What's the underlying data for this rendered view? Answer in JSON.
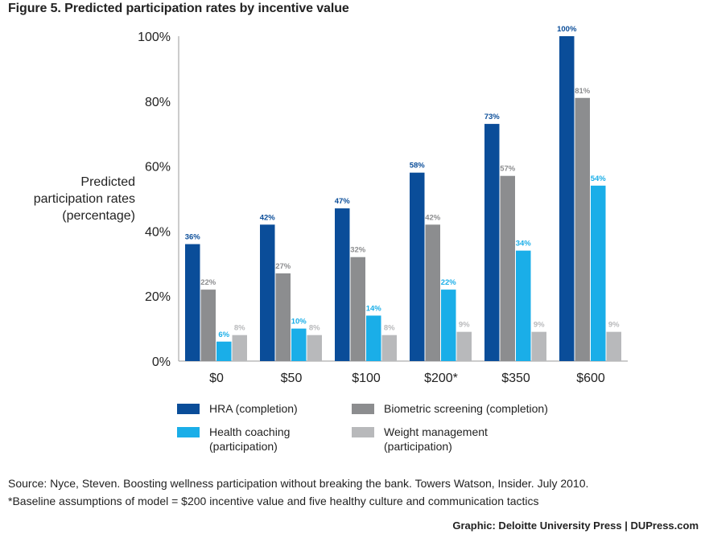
{
  "title": "Figure 5. Predicted participation rates by incentive value",
  "ylabel_lines": [
    "Predicted",
    "participation rates",
    "(percentage)"
  ],
  "source_line": "Source: Nyce, Steven. Boosting wellness participation without breaking the bank. Towers Watson, Insider. July 2010.",
  "footnote_line": "*Baseline assumptions of model = $200 incentive value and five healthy culture and communication tactics",
  "credit": "Graphic: Deloitte University Press  |  DUPress.com",
  "legend": [
    {
      "label": "HRA (completion)",
      "color": "#0a4d99"
    },
    {
      "label": "Biometric screening (completion)",
      "color": "#8c8d8f"
    },
    {
      "label": "Health coaching\n(participation)",
      "color": "#1aaee8"
    },
    {
      "label": "Weight management\n(participation)",
      "color": "#b8b9bb"
    }
  ],
  "chart_data": {
    "type": "bar",
    "title": "Figure 5. Predicted participation rates by incentive value",
    "xlabel": "",
    "ylabel": "Predicted participation rates (percentage)",
    "categories": [
      "$0",
      "$50",
      "$100",
      "$200*",
      "$350",
      "$600"
    ],
    "ylim": [
      0,
      100
    ],
    "yticks": [
      "0%",
      "20%",
      "40%",
      "60%",
      "80%",
      "100%"
    ],
    "series": [
      {
        "name": "HRA (completion)",
        "color": "#0a4d99",
        "label_color": "#0a4d99",
        "values": [
          36,
          42,
          47,
          58,
          73,
          100
        ],
        "labels": [
          "36%",
          "42%",
          "47%",
          "58%",
          "73%",
          "100%"
        ]
      },
      {
        "name": "Biometric screening (completion)",
        "color": "#8c8d8f",
        "label_color": "#8c8d8f",
        "values": [
          22,
          27,
          32,
          42,
          57,
          81
        ],
        "labels": [
          "22%",
          "27%",
          "32%",
          "42%",
          "57%",
          "81%"
        ]
      },
      {
        "name": "Health coaching (participation)",
        "color": "#1aaee8",
        "label_color": "#1aaee8",
        "values": [
          6,
          10,
          14,
          22,
          34,
          54
        ],
        "labels": [
          "6%",
          "10%",
          "14%",
          "22%",
          "34%",
          "54%"
        ]
      },
      {
        "name": "Weight management (participation)",
        "color": "#b8b9bb",
        "label_color": "#b8b9bb",
        "values": [
          8,
          8,
          8,
          9,
          9,
          9
        ],
        "labels": [
          "8%",
          "8%",
          "8%",
          "9%",
          "9%",
          "9%"
        ]
      }
    ],
    "grid": false,
    "legend_position": "bottom"
  }
}
